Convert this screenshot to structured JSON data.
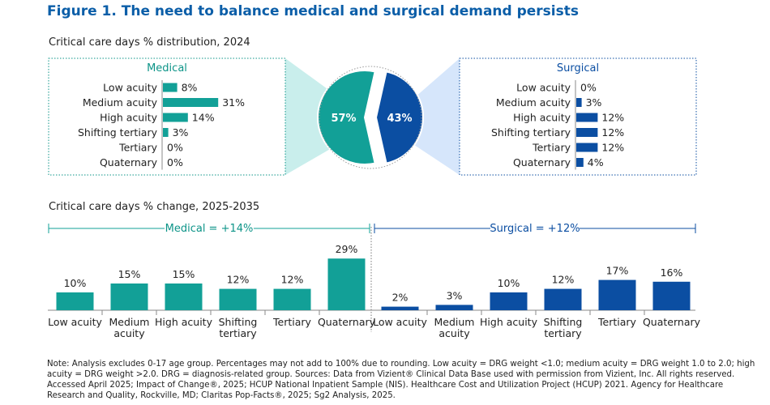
{
  "figure_title": "Figure 1. The need to balance medical and surgical demand persists",
  "colors": {
    "medical": "#12a097",
    "surgical": "#0b4ea2",
    "title": "#0b5ea8",
    "medical_light": "#c9eeec",
    "surgical_light": "#d6e6fb"
  },
  "chart_data": [
    {
      "type": "bar",
      "orientation": "horizontal",
      "title": "Critical care days % distribution, 2024",
      "panel_title": "Medical",
      "categories": [
        "Low acuity",
        "Medium acuity",
        "High acuity",
        "Shifting tertiary",
        "Tertiary",
        "Quaternary"
      ],
      "values": [
        8,
        31,
        14,
        3,
        0,
        0
      ],
      "value_labels": [
        "8%",
        "31%",
        "14%",
        "3%",
        "0%",
        "0%"
      ],
      "unit": "%"
    },
    {
      "type": "bar",
      "orientation": "horizontal",
      "title": "Critical care days % distribution, 2024",
      "panel_title": "Surgical",
      "categories": [
        "Low acuity",
        "Medium acuity",
        "High acuity",
        "Shifting tertiary",
        "Tertiary",
        "Quaternary"
      ],
      "values": [
        0,
        3,
        12,
        12,
        12,
        4
      ],
      "value_labels": [
        "0%",
        "3%",
        "12%",
        "12%",
        "12%",
        "4%"
      ],
      "unit": "%"
    },
    {
      "type": "pie",
      "title": "Critical care days % distribution, 2024",
      "labels": [
        "Medical",
        "Surgical"
      ],
      "values": [
        57,
        43
      ],
      "value_labels": [
        "57%",
        "43%"
      ]
    },
    {
      "type": "bar",
      "title": "Critical care days % change, 2025-2035",
      "groups": [
        {
          "name": "Medical = +14%",
          "categories": [
            [
              "Low acuity"
            ],
            [
              "Medium",
              "acuity"
            ],
            [
              "High acuity"
            ],
            [
              "Shifting",
              "tertiary"
            ],
            [
              "Tertiary"
            ],
            [
              "Quaternary"
            ]
          ],
          "values": [
            10,
            15,
            15,
            12,
            12,
            29
          ],
          "value_labels": [
            "10%",
            "15%",
            "15%",
            "12%",
            "12%",
            "29%"
          ]
        },
        {
          "name": "Surgical = +12%",
          "categories": [
            [
              "Low acuity"
            ],
            [
              "Medium",
              "acuity"
            ],
            [
              "High acuity"
            ],
            [
              "Shifting",
              "tertiary"
            ],
            [
              "Tertiary"
            ],
            [
              "Quaternary"
            ]
          ],
          "values": [
            2,
            3,
            10,
            12,
            17,
            16
          ],
          "value_labels": [
            "2%",
            "3%",
            "10%",
            "12%",
            "17%",
            "16%"
          ]
        }
      ],
      "ylim": [
        0,
        30
      ]
    }
  ],
  "note": "Note: Analysis excludes 0-17 age group. Percentages may not add to 100% due to rounding. Low acuity = DRG weight <1.0; medium acuity = DRG weight 1.0 to 2.0; high acuity = DRG weight >2.0. DRG = diagnosis-related group. Sources: Data from Vizient® Clinical Data Base used with permission from Vizient, Inc. All rights reserved. Accessed April 2025; Impact of Change®, 2025; HCUP National Inpatient Sample (NIS). Healthcare Cost and Utilization Project (HCUP) 2021. Agency for Healthcare Research and Quality, Rockville, MD; Claritas Pop-Facts®, 2025; Sg2 Analysis, 2025."
}
